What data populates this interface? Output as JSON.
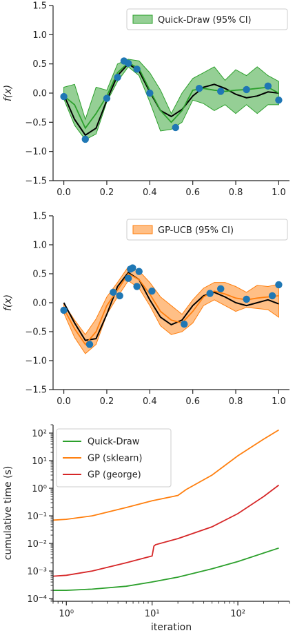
{
  "chart_data": [
    {
      "type": "line",
      "ylabel": "f(x)",
      "xlim": [
        -0.05,
        1.05
      ],
      "ylim": [
        -1.5,
        1.5
      ],
      "xticks": [
        "0.0",
        "0.2",
        "0.4",
        "0.6",
        "0.8",
        "1.0"
      ],
      "yticks": [
        "1.5",
        "1.0",
        "0.5",
        "0.0",
        "-0.5",
        "-1.0",
        "-1.5"
      ],
      "legend_position": "top-right",
      "legend_label": "Quick-Draw (95% CI)",
      "band_color": "#2ca02c",
      "mean_color": "#2ca02c",
      "points_color": "#1f77b4",
      "true_function_color": "#000000",
      "observations": {
        "x": [
          0.0,
          0.1,
          0.2,
          0.25,
          0.28,
          0.3,
          0.34,
          0.4,
          0.52,
          0.63,
          0.73,
          0.85,
          0.95,
          1.0
        ],
        "y": [
          -0.06,
          -0.79,
          -0.09,
          0.27,
          0.55,
          0.51,
          0.41,
          0.0,
          -0.59,
          0.08,
          0.03,
          0.06,
          0.12,
          -0.12
        ]
      },
      "true_function": {
        "x": [
          0.0,
          0.05,
          0.1,
          0.15,
          0.2,
          0.25,
          0.3,
          0.35,
          0.4,
          0.45,
          0.5,
          0.55,
          0.6,
          0.65,
          0.7,
          0.75,
          0.8,
          0.85,
          0.9,
          0.95,
          1.0
        ],
        "y": [
          -0.03,
          -0.45,
          -0.72,
          -0.6,
          -0.12,
          0.3,
          0.5,
          0.38,
          0.02,
          -0.3,
          -0.4,
          -0.28,
          -0.05,
          0.1,
          0.15,
          0.08,
          -0.02,
          -0.08,
          -0.05,
          0.02,
          0.0
        ]
      },
      "mean": {
        "x": [
          0.0,
          0.05,
          0.1,
          0.15,
          0.2,
          0.25,
          0.3,
          0.35,
          0.4,
          0.45,
          0.5,
          0.55,
          0.6,
          0.65,
          0.7,
          0.75,
          0.8,
          0.85,
          0.9,
          0.95,
          1.0
        ],
        "y": [
          -0.05,
          -0.2,
          -0.6,
          -0.35,
          -0.05,
          0.35,
          0.52,
          0.42,
          0.05,
          -0.3,
          -0.5,
          -0.3,
          0.05,
          0.08,
          0.05,
          0.03,
          0.05,
          0.06,
          0.08,
          0.1,
          0.0
        ]
      },
      "band": {
        "x": [
          0.0,
          0.05,
          0.1,
          0.15,
          0.2,
          0.25,
          0.3,
          0.35,
          0.4,
          0.45,
          0.5,
          0.55,
          0.6,
          0.65,
          0.7,
          0.75,
          0.8,
          0.85,
          0.9,
          0.95,
          1.0
        ],
        "lower": [
          -0.1,
          -0.55,
          -0.8,
          -0.7,
          -0.15,
          0.2,
          0.45,
          0.3,
          -0.15,
          -0.65,
          -0.62,
          -0.5,
          -0.12,
          -0.18,
          -0.3,
          -0.2,
          -0.35,
          -0.2,
          -0.35,
          -0.2,
          -0.2
        ],
        "upper": [
          0.1,
          0.15,
          -0.45,
          0.1,
          0.05,
          0.5,
          0.58,
          0.55,
          0.35,
          0.05,
          -0.35,
          0.0,
          0.25,
          0.35,
          0.45,
          0.22,
          0.4,
          0.3,
          0.45,
          0.3,
          0.2
        ]
      }
    },
    {
      "type": "line",
      "ylabel": "f(x)",
      "xlim": [
        -0.05,
        1.05
      ],
      "ylim": [
        -1.5,
        1.5
      ],
      "xticks": [
        "0.0",
        "0.2",
        "0.4",
        "0.6",
        "0.8",
        "1.0"
      ],
      "yticks": [
        "1.5",
        "1.0",
        "0.5",
        "0.0",
        "-0.5",
        "-1.0",
        "-1.5"
      ],
      "legend_position": "top-right",
      "legend_label": "GP-UCB (95% CI)",
      "band_color": "#ff7f0e",
      "mean_color": "#ff7f0e",
      "points_color": "#1f77b4",
      "true_function_color": "#000000",
      "observations": {
        "x": [
          0.0,
          0.12,
          0.23,
          0.26,
          0.3,
          0.31,
          0.32,
          0.34,
          0.35,
          0.41,
          0.56,
          0.68,
          0.73,
          0.85,
          0.97,
          1.0
        ],
        "y": [
          -0.13,
          -0.72,
          0.18,
          0.12,
          0.42,
          0.58,
          0.6,
          0.28,
          0.54,
          0.2,
          -0.37,
          0.16,
          0.24,
          0.06,
          0.12,
          0.31
        ]
      },
      "true_function": {
        "x": [
          0.0,
          0.05,
          0.1,
          0.15,
          0.2,
          0.25,
          0.3,
          0.35,
          0.4,
          0.45,
          0.5,
          0.55,
          0.6,
          0.65,
          0.7,
          0.75,
          0.8,
          0.85,
          0.9,
          0.95,
          1.0
        ],
        "y": [
          0.0,
          -0.35,
          -0.65,
          -0.62,
          -0.2,
          0.28,
          0.52,
          0.4,
          0.05,
          -0.25,
          -0.38,
          -0.3,
          -0.05,
          0.12,
          0.18,
          0.1,
          0.0,
          -0.05,
          0.0,
          0.05,
          -0.02
        ]
      },
      "mean": {
        "x": [
          0.0,
          0.05,
          0.1,
          0.15,
          0.2,
          0.25,
          0.3,
          0.35,
          0.4,
          0.45,
          0.5,
          0.55,
          0.6,
          0.65,
          0.7,
          0.75,
          0.8,
          0.85,
          0.9,
          0.95,
          1.0
        ],
        "y": [
          -0.1,
          -0.45,
          -0.72,
          -0.5,
          -0.05,
          0.22,
          0.5,
          0.4,
          0.15,
          -0.15,
          -0.3,
          -0.35,
          -0.15,
          0.1,
          0.2,
          0.15,
          0.08,
          0.05,
          0.08,
          0.1,
          0.12
        ]
      },
      "band": {
        "x": [
          0.0,
          0.05,
          0.1,
          0.15,
          0.2,
          0.25,
          0.3,
          0.35,
          0.4,
          0.45,
          0.5,
          0.55,
          0.6,
          0.65,
          0.7,
          0.75,
          0.8,
          0.85,
          0.9,
          0.95,
          1.0
        ],
        "lower": [
          -0.18,
          -0.6,
          -0.88,
          -0.72,
          -0.2,
          0.1,
          0.38,
          0.25,
          -0.05,
          -0.4,
          -0.55,
          -0.5,
          -0.35,
          -0.05,
          0.05,
          -0.05,
          -0.15,
          -0.08,
          -0.1,
          -0.12,
          -0.25
        ],
        "upper": [
          -0.02,
          -0.3,
          -0.55,
          -0.28,
          0.1,
          0.35,
          0.62,
          0.55,
          0.35,
          0.1,
          -0.05,
          -0.2,
          0.05,
          0.25,
          0.35,
          0.35,
          0.28,
          0.18,
          0.3,
          0.28,
          0.32
        ]
      }
    },
    {
      "type": "line",
      "xlabel": "iteration",
      "ylabel": "cumulative time (s)",
      "xscale": "log",
      "yscale": "log",
      "xlim": [
        0.7,
        400
      ],
      "ylim": [
        8e-05,
        200
      ],
      "xticks": [
        "10⁰",
        "10¹",
        "10²"
      ],
      "yticks": [
        "10²",
        "10¹",
        "10⁰",
        "10⁻¹",
        "10⁻²",
        "10⁻³",
        "10⁻⁴"
      ],
      "legend_position": "top-left",
      "series": [
        {
          "name": "Quick-Draw",
          "color": "#2ca02c",
          "x": [
            0.7,
            1,
            2,
            5,
            10,
            20,
            50,
            100,
            200,
            300
          ],
          "y": [
            0.0002,
            0.0002,
            0.00022,
            0.00028,
            0.0004,
            0.0006,
            0.0012,
            0.0022,
            0.0045,
            0.0068
          ]
        },
        {
          "name": "GP (sklearn)",
          "color": "#ff7f0e",
          "x": [
            0.7,
            1,
            2,
            5,
            10,
            20,
            25,
            50,
            100,
            200,
            300
          ],
          "y": [
            0.07,
            0.075,
            0.1,
            0.2,
            0.35,
            0.55,
            0.9,
            3,
            15,
            60,
            130
          ]
        },
        {
          "name": "GP (george)",
          "color": "#d62728",
          "x": [
            0.7,
            1,
            2,
            5,
            10,
            10.5,
            11,
            20,
            50,
            100,
            200,
            300
          ],
          "y": [
            0.00065,
            0.0007,
            0.001,
            0.002,
            0.0035,
            0.008,
            0.009,
            0.015,
            0.04,
            0.12,
            0.5,
            1.3
          ]
        }
      ]
    }
  ]
}
